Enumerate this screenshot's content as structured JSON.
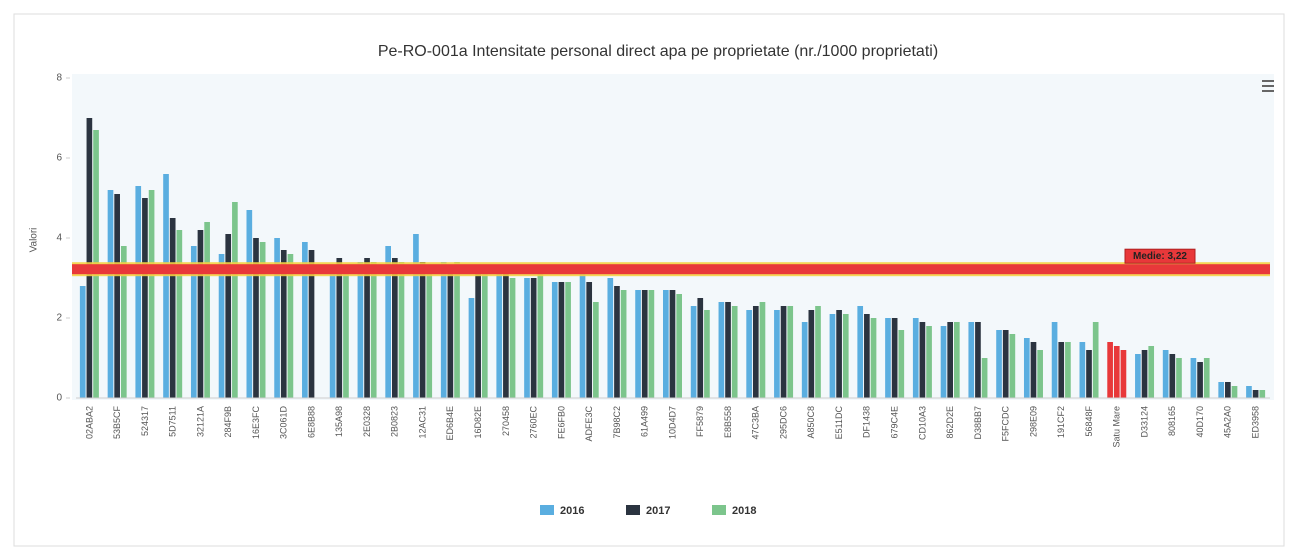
{
  "chart_data": {
    "type": "bar",
    "title": "Pe-RO-001a Intensitate personal direct apa pe proprietate (nr./1000 proprietati)",
    "y_label": "Valori",
    "categories": [
      "02ABA2",
      "53B5CF",
      "524317",
      "5D7511",
      "32121A",
      "284F9B",
      "16E3FC",
      "3C061D",
      "6E8B88",
      "135A98",
      "2E0328",
      "2B0823",
      "12AC31",
      "ED6B4E",
      "16D82E",
      "270458",
      "2760EC",
      "FE6FB0",
      "ADFE3C",
      "7B98C2",
      "61A499",
      "10D4D7",
      "FF5879",
      "E8B558",
      "47C3BA",
      "295DC6",
      "A850C8",
      "E511DC",
      "DF1438",
      "679C4E",
      "CD10A3",
      "862D2E",
      "D38BB7",
      "F5FCDC",
      "298E09",
      "191CF2",
      "56848F",
      "Satu Mare",
      "D33124",
      "808165",
      "40D170",
      "45A2A0",
      "ED3958"
    ],
    "series": [
      {
        "name": "2016",
        "color": "#5aaee0",
        "values": [
          2.8,
          5.2,
          5.3,
          5.6,
          3.8,
          3.6,
          4.7,
          4.0,
          3.9,
          3.3,
          3.4,
          3.8,
          4.1,
          3.4,
          2.5,
          3.2,
          3.0,
          2.9,
          3.1,
          3.0,
          2.7,
          2.7,
          2.3,
          2.4,
          2.2,
          2.2,
          1.9,
          2.1,
          2.3,
          2.0,
          2.0,
          1.8,
          1.9,
          1.7,
          1.5,
          1.9,
          1.4,
          1.4,
          1.1,
          1.2,
          1.0,
          0.4,
          0.3
        ]
      },
      {
        "name": "2017",
        "color": "#2b3440",
        "values": [
          7.0,
          5.1,
          5.0,
          4.5,
          4.2,
          4.1,
          4.0,
          3.7,
          3.7,
          3.5,
          3.5,
          3.5,
          3.4,
          3.3,
          3.2,
          3.1,
          3.0,
          2.9,
          2.9,
          2.8,
          2.7,
          2.7,
          2.5,
          2.4,
          2.3,
          2.3,
          2.2,
          2.2,
          2.1,
          2.0,
          1.9,
          1.9,
          1.9,
          1.7,
          1.4,
          1.4,
          1.2,
          1.3,
          1.2,
          1.1,
          0.9,
          0.4,
          0.2
        ]
      },
      {
        "name": "2018",
        "color": "#7cc58c",
        "values": [
          6.7,
          3.8,
          5.2,
          4.2,
          4.4,
          4.9,
          3.9,
          3.6,
          null,
          3.3,
          3.4,
          3.4,
          3.2,
          3.4,
          3.1,
          3.0,
          3.1,
          2.9,
          2.4,
          2.7,
          2.7,
          2.6,
          2.2,
          2.3,
          2.4,
          2.3,
          2.3,
          2.1,
          2.0,
          1.7,
          1.8,
          1.9,
          1.0,
          1.6,
          1.2,
          1.4,
          1.9,
          1.2,
          1.3,
          1.0,
          1.0,
          0.3,
          0.2
        ]
      }
    ],
    "highlight_category": "Satu Mare",
    "highlight_color": "#e8383a",
    "mean": {
      "value": 3.22,
      "label": "Medie: 3,22"
    },
    "ylim": [
      0,
      8
    ],
    "yticks": [
      0,
      2,
      4,
      6,
      8
    ],
    "grid": false,
    "legend": "bottom"
  }
}
